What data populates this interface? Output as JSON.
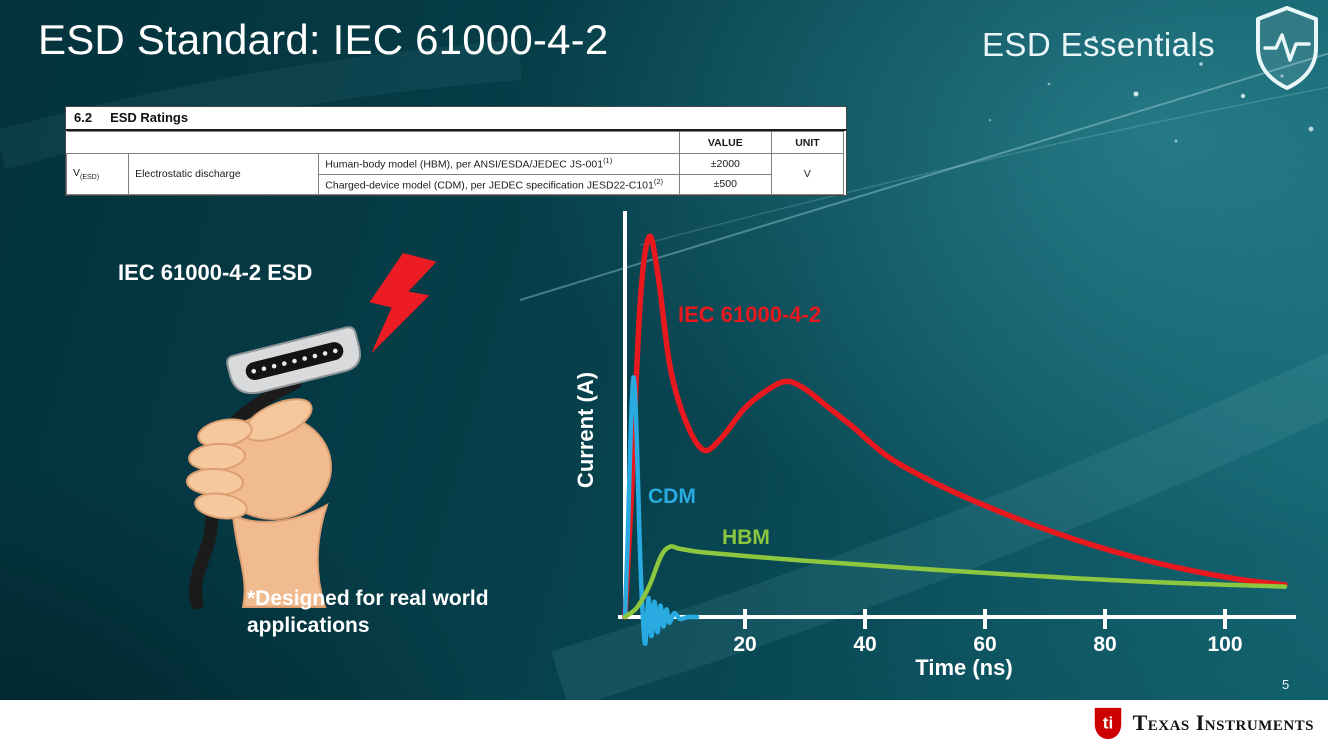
{
  "slide": {
    "title": "ESD Standard: IEC 61000-4-2",
    "brand": "ESD Essentials",
    "page_number": "5"
  },
  "ratings_table": {
    "section_number": "6.2",
    "section_title": "ESD Ratings",
    "value_header": "VALUE",
    "unit_header": "UNIT",
    "param_symbol": "V",
    "param_sub": "(ESD)",
    "param_name": "Electrostatic discharge",
    "rows": [
      {
        "condition": "Human-body model (HBM), per ANSI/ESDA/JEDEC JS-001",
        "sup": "(1)",
        "value": "±2000"
      },
      {
        "condition": "Charged-device model (CDM), per JEDEC specification JESD22-C101",
        "sup": "(2)",
        "value": "±500"
      }
    ],
    "unit": "V"
  },
  "left_panel": {
    "caption": "IEC 61000-4-2 ESD",
    "footnote": "*Designed for real world applications"
  },
  "chart_data": {
    "type": "line",
    "title": "",
    "xlabel": "Time (ns)",
    "ylabel": "Current (A)",
    "xlim": [
      0,
      110
    ],
    "ylim": [
      0,
      1.05
    ],
    "y_units": "relative (no y tick labels shown)",
    "x_ticks": [
      20,
      40,
      60,
      80,
      100
    ],
    "grid": false,
    "legend_position": "inline labels on curves",
    "series": [
      {
        "name": "IEC 61000-4-2",
        "color": "#e8191e",
        "stroke_width": 5.5,
        "x": [
          0,
          1,
          2.5,
          4,
          5.5,
          7.5,
          10,
          13,
          16,
          20,
          24,
          27,
          30,
          34,
          38,
          44,
          52,
          62,
          72,
          82,
          92,
          102,
          110
        ],
        "y": [
          0,
          0.3,
          0.82,
          1.0,
          0.9,
          0.66,
          0.52,
          0.44,
          0.47,
          0.55,
          0.6,
          0.62,
          0.6,
          0.55,
          0.5,
          0.42,
          0.35,
          0.28,
          0.22,
          0.17,
          0.13,
          0.1,
          0.085
        ]
      },
      {
        "name": "CDM",
        "color": "#29abe2",
        "stroke_width": 4.5,
        "x": [
          0,
          0.4,
          0.9,
          1.4,
          1.9,
          2.4,
          2.9,
          3.4,
          3.9,
          4.4,
          4.9,
          5.4,
          5.9,
          6.4,
          6.9,
          7.4,
          8.2,
          9.2,
          10.5,
          12
        ],
        "y": [
          0,
          0.18,
          0.46,
          0.63,
          0.5,
          0.22,
          0.02,
          -0.07,
          0.05,
          -0.05,
          0.04,
          -0.04,
          0.03,
          -0.025,
          0.02,
          -0.015,
          0.01,
          -0.005,
          0,
          0
        ]
      },
      {
        "name": "HBM",
        "color": "#8dc63f",
        "stroke_width": 4.5,
        "x": [
          0,
          2,
          4,
          6,
          7.5,
          9,
          12,
          16,
          22,
          30,
          40,
          52,
          64,
          76,
          88,
          100,
          110
        ],
        "y": [
          0,
          0.025,
          0.08,
          0.16,
          0.185,
          0.18,
          0.172,
          0.166,
          0.158,
          0.148,
          0.137,
          0.124,
          0.112,
          0.101,
          0.092,
          0.085,
          0.08
        ]
      }
    ]
  },
  "footer": {
    "logo_bug": "ti",
    "company": "Texas Instruments"
  }
}
